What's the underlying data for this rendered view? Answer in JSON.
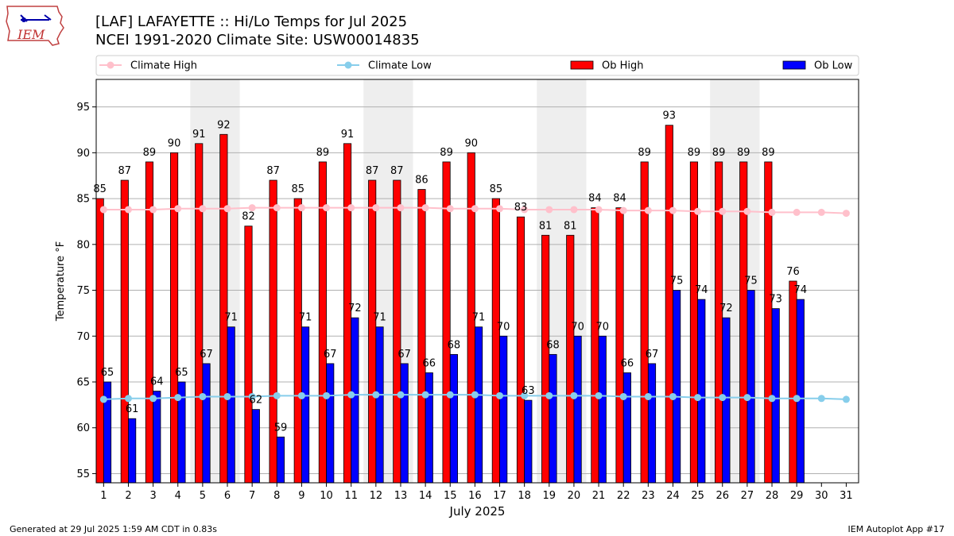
{
  "header": {
    "title_line1": "[LAF] LAFAYETTE :: Hi/Lo Temps for Jul 2025",
    "title_line2": "NCEI 1991-2020 Climate Site: USW00014835"
  },
  "logo": {
    "text": "IEM"
  },
  "footer": {
    "left": "Generated at 29 Jul 2025 1:59 AM CDT in 0.83s",
    "right": "IEM Autoplot App #17"
  },
  "colors": {
    "ob_high": "#ff0000",
    "ob_low": "#0000ff",
    "climate_high": "#ffc0cb",
    "climate_low": "#87ceeb",
    "weekend_shade": "#eeeeee",
    "grid": "#b0b0b0"
  },
  "chart_data": {
    "type": "bar",
    "title": "[LAF] LAFAYETTE :: Hi/Lo Temps for Jul 2025",
    "subtitle": "NCEI 1991-2020 Climate Site: USW00014835",
    "xlabel": "July 2025",
    "ylabel": "Temperature °F",
    "ylim": [
      54,
      98
    ],
    "yticks": [
      55,
      60,
      65,
      70,
      75,
      80,
      85,
      90,
      95
    ],
    "grid": true,
    "legend_position": "top",
    "legend": [
      "Climate High",
      "Climate Low",
      "Ob High",
      "Ob Low"
    ],
    "days": [
      1,
      2,
      3,
      4,
      5,
      6,
      7,
      8,
      9,
      10,
      11,
      12,
      13,
      14,
      15,
      16,
      17,
      18,
      19,
      20,
      21,
      22,
      23,
      24,
      25,
      26,
      27,
      28,
      29,
      30,
      31
    ],
    "shaded_days": [
      [
        5,
        6
      ],
      [
        12,
        13
      ],
      [
        19,
        20
      ],
      [
        26,
        27
      ]
    ],
    "series": [
      {
        "name": "Ob High",
        "kind": "bar",
        "values": [
          85,
          87,
          89,
          90,
          91,
          92,
          82,
          87,
          85,
          89,
          91,
          87,
          87,
          86,
          89,
          90,
          85,
          83,
          81,
          81,
          84,
          84,
          89,
          93,
          89,
          89,
          89,
          89,
          76
        ]
      },
      {
        "name": "Ob Low",
        "kind": "bar",
        "values": [
          65,
          61,
          64,
          65,
          67,
          71,
          62,
          59,
          71,
          67,
          72,
          71,
          67,
          66,
          68,
          71,
          70,
          63,
          68,
          70,
          70,
          66,
          67,
          75,
          74,
          72,
          75,
          73,
          74
        ]
      },
      {
        "name": "Climate High",
        "kind": "line",
        "values": [
          83.8,
          83.8,
          83.8,
          83.9,
          83.9,
          83.9,
          84.0,
          84.0,
          84.0,
          84.0,
          84.0,
          84.0,
          84.0,
          84.0,
          83.9,
          83.9,
          83.9,
          83.8,
          83.8,
          83.8,
          83.8,
          83.7,
          83.7,
          83.7,
          83.6,
          83.6,
          83.6,
          83.5,
          83.5,
          83.5,
          83.4
        ]
      },
      {
        "name": "Climate Low",
        "kind": "line",
        "values": [
          63.1,
          63.2,
          63.2,
          63.3,
          63.4,
          63.4,
          63.4,
          63.5,
          63.5,
          63.5,
          63.6,
          63.6,
          63.6,
          63.6,
          63.6,
          63.6,
          63.5,
          63.5,
          63.5,
          63.5,
          63.5,
          63.4,
          63.4,
          63.4,
          63.3,
          63.3,
          63.3,
          63.2,
          63.2,
          63.2,
          63.1
        ]
      }
    ]
  }
}
